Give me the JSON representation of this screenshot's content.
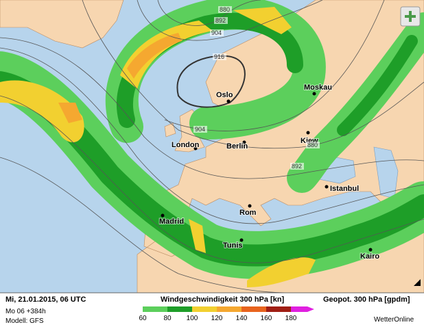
{
  "map": {
    "cities": [
      "Oslo",
      "Moskau",
      "London",
      "Berlin",
      "Kiew",
      "Istanbul",
      "Madrid",
      "Rom",
      "Tunis",
      "Kairo"
    ],
    "contour_labels": [
      880,
      892,
      904,
      916,
      904,
      880,
      892
    ]
  },
  "footer": {
    "date": "Mi, 21.01.2015, 06 UTC",
    "run": "Mo 06 +384h",
    "model": "Modell: GFS",
    "legend_title": "Windgeschwindigkeit 300 hPa [kn]",
    "legend_values": [
      60,
      80,
      100,
      120,
      140,
      160,
      180
    ],
    "legend_colors": [
      "#5ccf5c",
      "#1e9e28",
      "#f2d030",
      "#f5a830",
      "#e8641e",
      "#a01e14",
      "#e020e0"
    ],
    "right_title": "Geopot. 300 hPa [gpdm]",
    "brand": "WetterOnline"
  }
}
